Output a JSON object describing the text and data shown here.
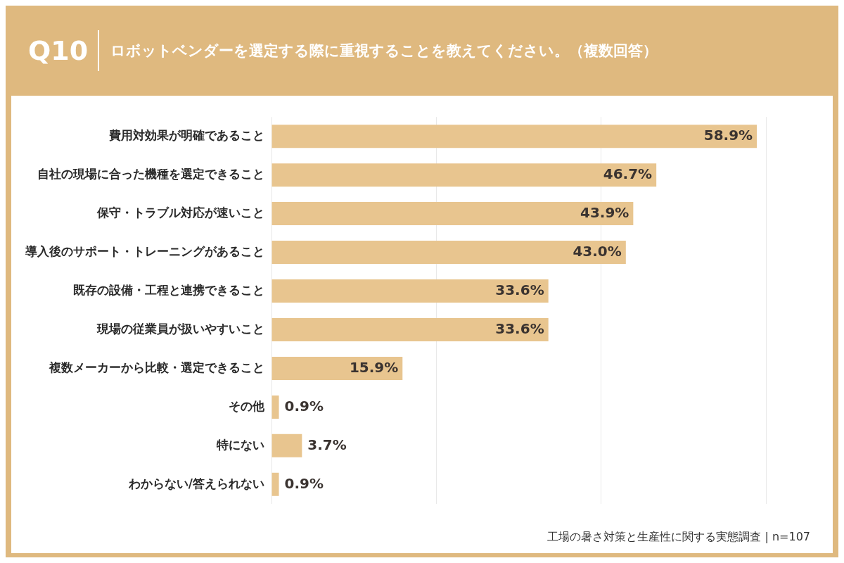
{
  "chart_data": {
    "type": "bar",
    "orientation": "horizontal",
    "title": "Q10",
    "subtitle": "ロボットベンダーを選定する際に重視することを教えてください。（複数回答）",
    "categories": [
      "費用対効果が明確であること",
      "自社の現場に合った機種を選定できること",
      "保守・トラブル対応が速いこと",
      "導入後のサポート・トレーニングがあること",
      "既存の設備・工程と連携できること",
      "現場の従業員が扱いやすいこと",
      "複数メーカーから比較・選定できること",
      "その他",
      "特にない",
      "わからない/答えられない"
    ],
    "values": [
      58.9,
      46.7,
      43.9,
      43.0,
      33.6,
      33.6,
      15.9,
      0.9,
      3.7,
      0.9
    ],
    "value_labels": [
      "58.9%",
      "46.7%",
      "43.9%",
      "43.0%",
      "33.6%",
      "33.6%",
      "15.9%",
      "0.9%",
      "3.7%",
      "0.9%"
    ],
    "color": "#e8c58f",
    "xlim": [
      0,
      60
    ],
    "xticks": [
      {
        "value": 0,
        "label": null
      },
      {
        "value": 20,
        "label": null
      },
      {
        "value": 40,
        "label": null
      },
      {
        "value": 60,
        "label": null
      }
    ],
    "tick_labels": "y",
    "grid": "x",
    "legend": false,
    "annotations": [
      "工場の暑さ対策と生産性に関する実態調査 | n=107"
    ]
  }
}
